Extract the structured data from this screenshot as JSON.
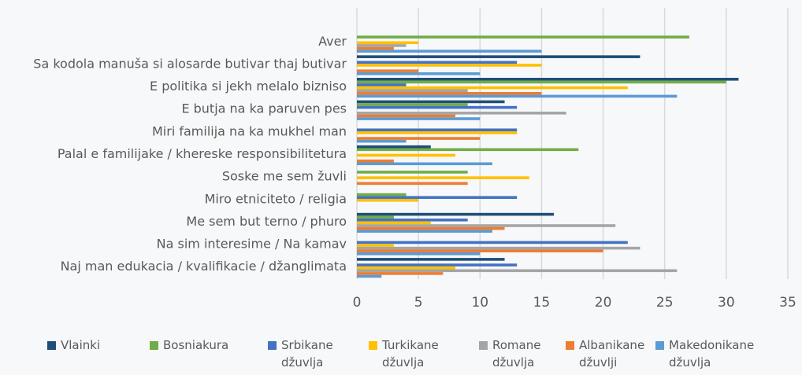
{
  "chart_data": {
    "type": "bar",
    "orientation": "horizontal",
    "categories": [
      "Aver",
      "Sa kodola manuša si alosarde butivar thaj butivar",
      "E politika si jekh melalo bizniso",
      "E butja na ka paruven pes",
      "Miri familija na ka mukhel man",
      "Palal e familijake / khereske responsibilitetura",
      "Soske me sem žuvli",
      "Miro etniciteto / religia",
      "Me sem but terno / phuro",
      "Na sim interesime / Na kamav",
      "Naj man edukacia / kvalifikacie / džanglimata"
    ],
    "series": [
      {
        "name": "Vlainki",
        "color": "#1f4e79",
        "values": [
          0,
          23,
          31,
          12,
          0,
          6,
          0,
          0,
          16,
          0,
          12
        ]
      },
      {
        "name": "Bosniakura",
        "color": "#70ad47",
        "values": [
          27,
          0,
          30,
          9,
          0,
          18,
          9,
          4,
          3,
          0,
          0
        ]
      },
      {
        "name": "Srbikane džuvlja",
        "color": "#4472c4",
        "values": [
          0,
          13,
          4,
          13,
          13,
          0,
          0,
          13,
          9,
          22,
          13
        ]
      },
      {
        "name": "Turkikane džuvlja",
        "color": "#ffc000",
        "values": [
          5,
          15,
          22,
          0,
          13,
          8,
          14,
          5,
          6,
          3,
          8
        ]
      },
      {
        "name": "Romane džuvlja",
        "color": "#a5a5a5",
        "values": [
          4,
          0,
          9,
          17,
          0,
          0,
          0,
          0,
          21,
          23,
          26
        ]
      },
      {
        "name": "Albanikane džuvlji",
        "color": "#ed7d31",
        "values": [
          3,
          5,
          15,
          8,
          10,
          3,
          9,
          0,
          12,
          20,
          7
        ]
      },
      {
        "name": "Makedonikane džuvlja",
        "color": "#5b9bd5",
        "values": [
          15,
          10,
          26,
          10,
          4,
          11,
          0,
          0,
          11,
          10,
          2
        ]
      }
    ],
    "xlim": [
      0,
      35
    ],
    "xticks": [
      0,
      5,
      10,
      15,
      20,
      25,
      30,
      35
    ],
    "grid": true
  }
}
